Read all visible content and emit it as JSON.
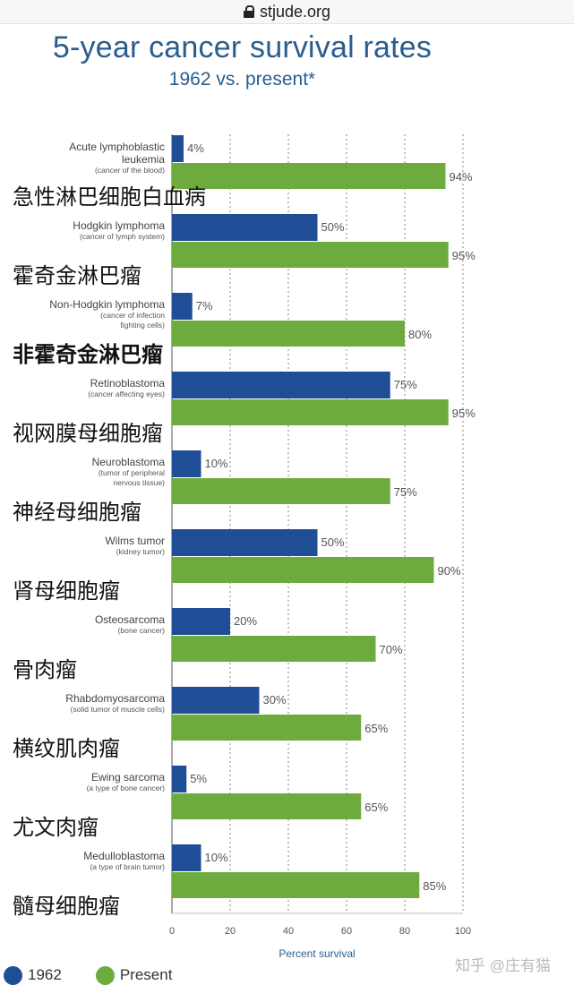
{
  "browser": {
    "url": "stjude.org"
  },
  "chart_data": {
    "type": "bar",
    "orientation": "horizontal",
    "title": "5-year cancer survival rates",
    "subtitle": "1962 vs. present*",
    "xlabel": "Percent survival",
    "xlim": [
      0,
      100
    ],
    "xticks": [
      0,
      20,
      40,
      60,
      80,
      100
    ],
    "grid": "dotted vertical",
    "legend": "bottom-left",
    "categories": [
      {
        "name": "Acute lymphoblastic leukemia",
        "note": "(cancer of the blood)",
        "chinese": "急性淋巴细胞白血病"
      },
      {
        "name": "Hodgkin lymphoma",
        "note": "(cancer of lymph system)",
        "chinese": "霍奇金淋巴瘤"
      },
      {
        "name": "Non-Hodgkin lymphoma",
        "note": "(cancer of infection fighting cells)",
        "chinese": "非霍奇金淋巴瘤"
      },
      {
        "name": "Retinoblastoma",
        "note": "(cancer affecting eyes)",
        "chinese": "视网膜母细胞瘤"
      },
      {
        "name": "Neuroblastoma",
        "note": "(tumor of peripheral nervous tissue)",
        "chinese": "神经母细胞瘤"
      },
      {
        "name": "Wilms tumor",
        "note": "(kidney tumor)",
        "chinese": "肾母细胞瘤"
      },
      {
        "name": "Osteosarcoma",
        "note": "(bone cancer)",
        "chinese": "骨肉瘤"
      },
      {
        "name": "Rhabdomyosarcoma",
        "note": "(solid tumor of muscle cells)",
        "chinese": "横纹肌肉瘤"
      },
      {
        "name": "Ewing sarcoma",
        "note": "(a type of bone cancer)",
        "chinese": "尤文肉瘤"
      },
      {
        "name": "Medulloblastoma",
        "note": "(a type of brain tumor)",
        "chinese": "髓母细胞瘤"
      }
    ],
    "series": [
      {
        "name": "1962",
        "color": "#1f4e96",
        "values": [
          4,
          50,
          7,
          75,
          10,
          50,
          20,
          30,
          5,
          10
        ]
      },
      {
        "name": "Present",
        "color": "#6eab3f",
        "values": [
          94,
          95,
          80,
          95,
          75,
          90,
          70,
          65,
          65,
          85
        ]
      }
    ]
  },
  "watermark": "知乎 @庄有猫"
}
